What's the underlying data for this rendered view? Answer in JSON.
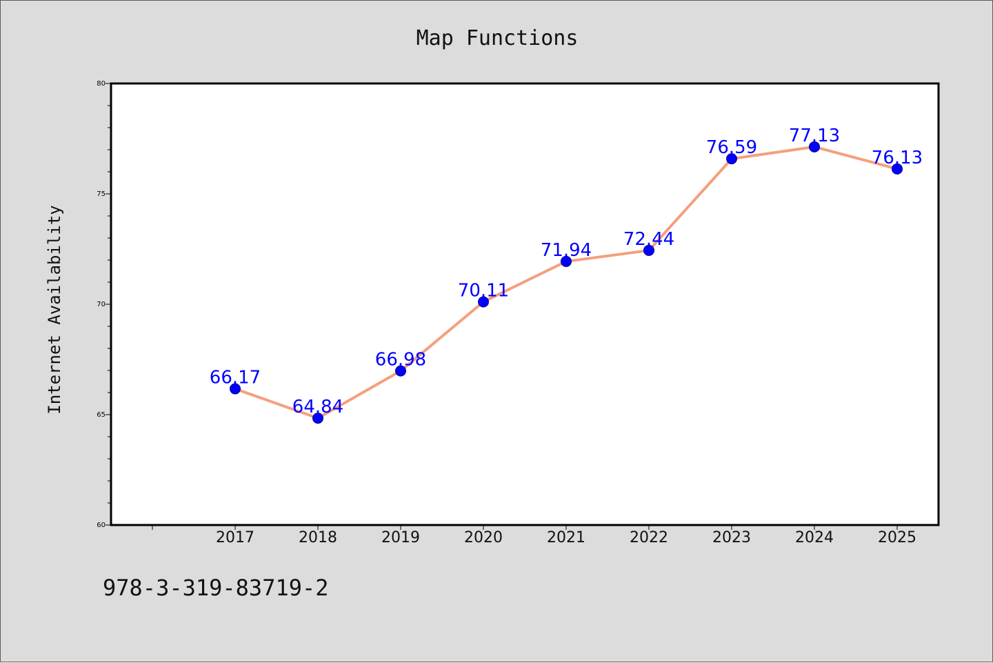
{
  "chart_data": {
    "type": "line",
    "title": "Map Functions",
    "xlabel": "",
    "ylabel": "Internet Availability",
    "categories": [
      "2017",
      "2018",
      "2019",
      "2020",
      "2021",
      "2022",
      "2023",
      "2024",
      "2025"
    ],
    "series": [
      {
        "values": [
          66.17,
          64.84,
          66.98,
          70.11,
          71.94,
          72.44,
          76.59,
          77.13,
          76.13
        ],
        "data_labels": [
          "66.17",
          "64.84",
          "66.98",
          "70.11",
          "71.94",
          "72.44",
          "76.59",
          "77.13",
          "76.13"
        ]
      }
    ],
    "ylim": [
      60,
      80
    ],
    "yticks": [
      "60",
      "65",
      "70",
      "75",
      "80"
    ],
    "grid": false,
    "legend": "none",
    "colors": {
      "line": "#f4a07c",
      "marker_fill": "#0000ff",
      "marker_edge": "#00008b",
      "data_label": "#0000ff",
      "plot_background": "#ffffff",
      "figure_background": "#dcdcdc",
      "axes_edge": "#000000"
    }
  },
  "footnote": "978-3-319-83719-2"
}
